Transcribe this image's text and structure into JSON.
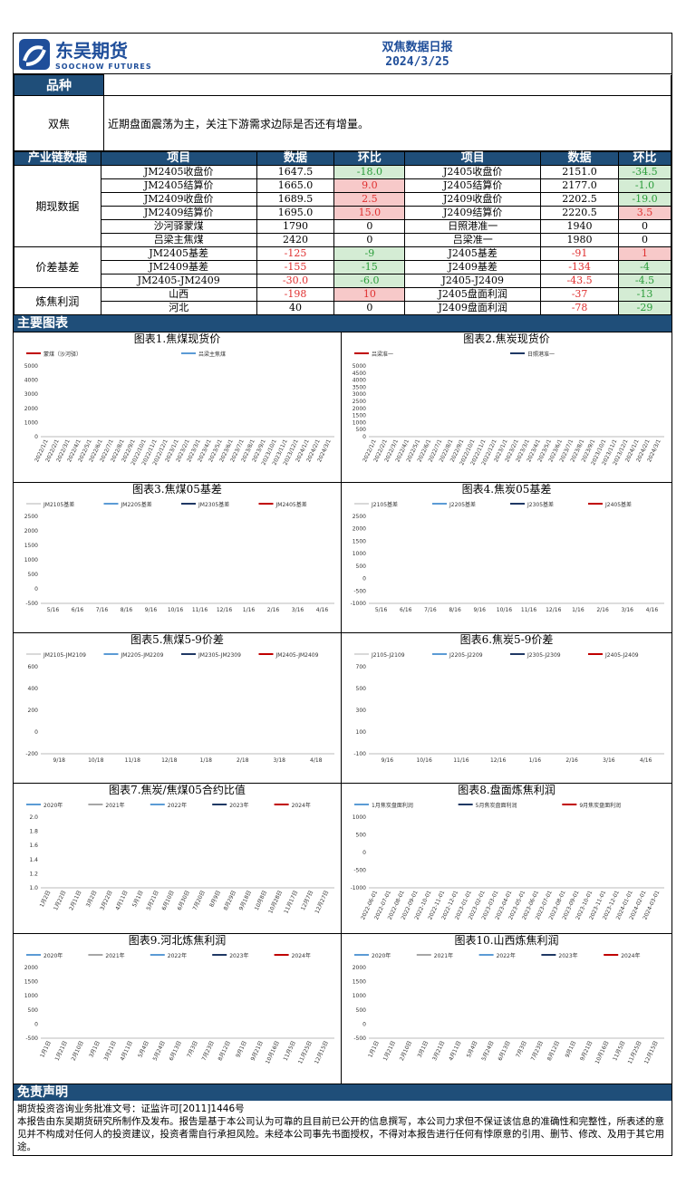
{
  "header": {
    "brand_cn": "东吴期货",
    "brand_en": "SOOCHOW FUTURES",
    "title": "双焦数据日报",
    "date": "2024/3/25"
  },
  "summary": {
    "header": "品种",
    "name": "双焦",
    "text": "近期盘面震荡为主，关注下游需求边际是否还有增量。"
  },
  "table": {
    "headers": [
      "产业链数据",
      "项目",
      "数据",
      "环比",
      "项目",
      "数据",
      "环比"
    ],
    "groups": [
      {
        "name": "期现数据",
        "rows": [
          [
            "JM2405收盘价",
            "1647.5",
            "-18.0",
            "J2405收盘价",
            "2151.0",
            "-34.5"
          ],
          [
            "JM2405结算价",
            "1665.0",
            "9.0",
            "J2405结算价",
            "2177.0",
            "-1.0"
          ],
          [
            "JM2409收盘价",
            "1689.5",
            "2.5",
            "J2409收盘价",
            "2202.5",
            "-19.0"
          ],
          [
            "JM2409结算价",
            "1695.0",
            "15.0",
            "J2409结算价",
            "2220.5",
            "3.5"
          ],
          [
            "沙河驿蒙煤",
            "1790",
            "0",
            "日照港准一",
            "1940",
            "0"
          ],
          [
            "吕梁主焦煤",
            "2420",
            "0",
            "吕梁准一",
            "1980",
            "0"
          ]
        ]
      },
      {
        "name": "价差基差",
        "rows": [
          [
            "JM2405基差",
            "-125",
            "-9",
            "J2405基差",
            "-91",
            "1"
          ],
          [
            "JM2409基差",
            "-155",
            "-15",
            "J2409基差",
            "-134",
            "-4"
          ],
          [
            "JM2405-JM2409",
            "-30.0",
            "-6.0",
            "J2405-J2409",
            "-43.5",
            "-4.5"
          ]
        ]
      },
      {
        "name": "炼焦利润",
        "rows": [
          [
            "山西",
            "-198",
            "10",
            "J2405盘面利润",
            "-37",
            "-13"
          ],
          [
            "河北",
            "40",
            "0",
            "J2409盘面利润",
            "-78",
            "-29"
          ]
        ]
      }
    ]
  },
  "charts_header": "主要图表",
  "charts": [
    {
      "title": "图表1.焦煤现货价",
      "legend": [
        "蒙煤（沙河驿）",
        "吕梁主焦煤"
      ],
      "colors": [
        "#c00000",
        "#5b9bd5"
      ],
      "yticks": [
        "5000",
        "4000",
        "3000",
        "2000",
        "1000",
        "0"
      ],
      "xticks": [
        "2022/1/1",
        "2022/2/1",
        "2022/3/1",
        "2022/4/1",
        "2022/5/1",
        "2022/6/1",
        "2022/7/1",
        "2022/8/1",
        "2022/9/1",
        "2022/10/1",
        "2022/11/1",
        "2022/12/1",
        "2023/1/1",
        "2023/2/1",
        "2023/3/1",
        "2023/4/1",
        "2023/5/1",
        "2023/6/1",
        "2023/7/1",
        "2023/8/1",
        "2023/9/1",
        "2023/10/1",
        "2023/11/1",
        "2023/12/1",
        "2024/1/1",
        "2024/2/1",
        "2024/3/1"
      ]
    },
    {
      "title": "图表2.焦炭现货价",
      "legend": [
        "吕梁准一",
        "日照港准一"
      ],
      "colors": [
        "#c00000",
        "#1f3864"
      ],
      "yticks": [
        "5000",
        "4500",
        "4000",
        "3500",
        "3000",
        "2500",
        "2000",
        "1500",
        "1000",
        "500",
        "0"
      ],
      "xticks": [
        "2022/1/1",
        "2022/2/1",
        "2022/3/1",
        "2022/4/1",
        "2022/5/1",
        "2022/6/1",
        "2022/7/1",
        "2022/8/1",
        "2022/9/1",
        "2022/10/1",
        "2022/11/1",
        "2022/12/1",
        "2023/1/1",
        "2023/2/1",
        "2023/3/1",
        "2023/4/1",
        "2023/5/1",
        "2023/6/1",
        "2023/7/1",
        "2023/8/1",
        "2023/9/1",
        "2023/10/1",
        "2023/11/1",
        "2023/12/1",
        "2024/1/1",
        "2024/2/1",
        "2024/3/1"
      ]
    },
    {
      "title": "图表3.焦煤05基差",
      "legend": [
        "JM2105基差",
        "JM2205基差",
        "JM2305基差",
        "JM2405基差"
      ],
      "colors": [
        "#d9d9d9",
        "#5b9bd5",
        "#1f3864",
        "#c00000"
      ],
      "yticks": [
        "2500",
        "2000",
        "1500",
        "1000",
        "500",
        "0",
        "-500"
      ],
      "xticks": [
        "5/16",
        "6/16",
        "7/16",
        "8/16",
        "9/16",
        "10/16",
        "11/16",
        "12/16",
        "1/16",
        "2/16",
        "3/16",
        "4/16"
      ]
    },
    {
      "title": "图表4.焦炭05基差",
      "legend": [
        "J2105基差",
        "J2205基差",
        "J2305基差",
        "J2405基差"
      ],
      "colors": [
        "#d9d9d9",
        "#5b9bd5",
        "#1f3864",
        "#c00000"
      ],
      "yticks": [
        "2500",
        "2000",
        "1500",
        "1000",
        "500",
        "0",
        "-500",
        "-1000"
      ],
      "xticks": [
        "5/16",
        "6/16",
        "7/16",
        "8/16",
        "9/16",
        "10/16",
        "11/16",
        "12/16",
        "1/16",
        "2/16",
        "3/16",
        "4/16"
      ]
    },
    {
      "title": "图表5.焦煤5-9价差",
      "legend": [
        "JM2105-JM2109",
        "JM2205-JM2209",
        "JM2305-JM2309",
        "JM2405-JM2409"
      ],
      "colors": [
        "#d9d9d9",
        "#5b9bd5",
        "#1f3864",
        "#c00000"
      ],
      "yticks": [
        "600",
        "400",
        "200",
        "0",
        "-200"
      ],
      "xticks": [
        "9/18",
        "10/18",
        "11/18",
        "12/18",
        "1/18",
        "2/18",
        "3/18",
        "4/18"
      ]
    },
    {
      "title": "图表6.焦炭5-9价差",
      "legend": [
        "J2105-J2109",
        "J2205-J2209",
        "J2305-J2309",
        "J2405-J2409"
      ],
      "colors": [
        "#d9d9d9",
        "#5b9bd5",
        "#1f3864",
        "#c00000"
      ],
      "yticks": [
        "700",
        "500",
        "300",
        "100",
        "-100"
      ],
      "xticks": [
        "9/16",
        "10/16",
        "11/16",
        "12/16",
        "1/16",
        "2/16",
        "3/16",
        "4/16"
      ]
    },
    {
      "title": "图表7.焦炭/焦煤05合约比值",
      "legend": [
        "2020年",
        "2021年",
        "2022年",
        "2023年",
        "2024年"
      ],
      "colors": [
        "#5b9bd5",
        "#a6a6a6",
        "#5b9bd5",
        "#1f3864",
        "#c00000"
      ],
      "yticks": [
        "2.0",
        "1.8",
        "1.6",
        "1.4",
        "1.2",
        "1.0"
      ],
      "xticks": [
        "1月2日",
        "1月22日",
        "2月11日",
        "3月2日",
        "3月22日",
        "4月11日",
        "5月1日",
        "5月21日",
        "6月10日",
        "6月30日",
        "7月20日",
        "8月9日",
        "8月29日",
        "9月18日",
        "10月8日",
        "10月28日",
        "11月17日",
        "12月7日",
        "12月27日"
      ]
    },
    {
      "title": "图表8.盘面炼焦利润",
      "legend": [
        "1月焦炭盘面利润",
        "5月焦炭盘面利润",
        "9月焦炭盘面利润"
      ],
      "colors": [
        "#5b9bd5",
        "#1f3864",
        "#c00000"
      ],
      "yticks": [
        "1000",
        "500",
        "0",
        "-500",
        "-1000"
      ],
      "xticks": [
        "2022-06-01",
        "2022-07-01",
        "2022-08-01",
        "2022-09-01",
        "2022-10-01",
        "2022-11-01",
        "2022-12-01",
        "2023-01-01",
        "2023-02-01",
        "2023-03-01",
        "2023-04-01",
        "2023-05-01",
        "2023-06-01",
        "2023-07-01",
        "2023-08-01",
        "2023-09-01",
        "2023-10-01",
        "2023-11-01",
        "2023-12-01",
        "2024-01-01",
        "2024-02-01",
        "2024-03-01"
      ]
    },
    {
      "title": "图表9.河北炼焦利润",
      "legend": [
        "2020年",
        "2021年",
        "2022年",
        "2023年",
        "2024年"
      ],
      "colors": [
        "#5b9bd5",
        "#a6a6a6",
        "#5b9bd5",
        "#1f3864",
        "#c00000"
      ],
      "yticks": [
        "2000",
        "1500",
        "1000",
        "500",
        "0",
        "-500"
      ],
      "xticks": [
        "1月1日",
        "1月21日",
        "2月10日",
        "3月1日",
        "3月21日",
        "4月11日",
        "5月4日",
        "5月24日",
        "6月13日",
        "7月3日",
        "7月23日",
        "8月12日",
        "9月1日",
        "9月21日",
        "10月16日",
        "11月5日",
        "11月25日",
        "12月15日"
      ]
    },
    {
      "title": "图表10.山西炼焦利润",
      "legend": [
        "2020年",
        "2021年",
        "2022年",
        "2023年",
        "2024年"
      ],
      "colors": [
        "#5b9bd5",
        "#a6a6a6",
        "#5b9bd5",
        "#1f3864",
        "#c00000"
      ],
      "yticks": [
        "2000",
        "1500",
        "1000",
        "500",
        "0",
        "-500"
      ],
      "xticks": [
        "1月1日",
        "1月21日",
        "2月10日",
        "3月1日",
        "3月21日",
        "4月11日",
        "5月4日",
        "5月24日",
        "6月13日",
        "7月3日",
        "7月23日",
        "8月12日",
        "9月1日",
        "9月21日",
        "10月16日",
        "11月5日",
        "11月25日",
        "12月15日"
      ]
    }
  ],
  "disclaimer": {
    "header": "免责声明",
    "line1": "期货投资咨询业务批准文号：证监许可[2011]1446号",
    "line2": "本报告由东吴期货研究所制作及发布。报告是基于本公司认为可靠的且目前已公开的信息撰写，本公司力求但不保证该信息的准确性和完整性，所表述的意见并不构成对任何人的投资建议，投资者需自行承担风险。未经本公司事先书面授权，不得对本报告进行任何有悖原意的引用、删节、修改、及用于其它用途。"
  }
}
